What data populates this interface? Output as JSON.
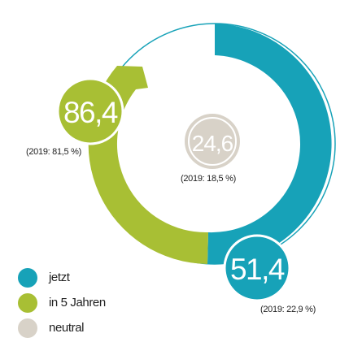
{
  "chart_data": {
    "type": "donut",
    "colors": {
      "jetzt": "#17a2b8",
      "in5": "#a8bf34",
      "neutral": "#d8d2c8",
      "ring_edge": "#17a2b8"
    },
    "series": [
      {
        "key": "jetzt",
        "value": "51,4",
        "previous": "(2019: 22,9 %)"
      },
      {
        "key": "in5",
        "value": "86,4",
        "previous": "(2019: 81,5 %)"
      },
      {
        "key": "neutral",
        "value": "24,6",
        "previous": "(2019: 18,5 %)"
      }
    ],
    "legend": [
      {
        "key": "jetzt",
        "label": "jetzt"
      },
      {
        "key": "in5",
        "label": "in 5 Jahren"
      },
      {
        "key": "neutral",
        "label": "neutral"
      }
    ]
  }
}
